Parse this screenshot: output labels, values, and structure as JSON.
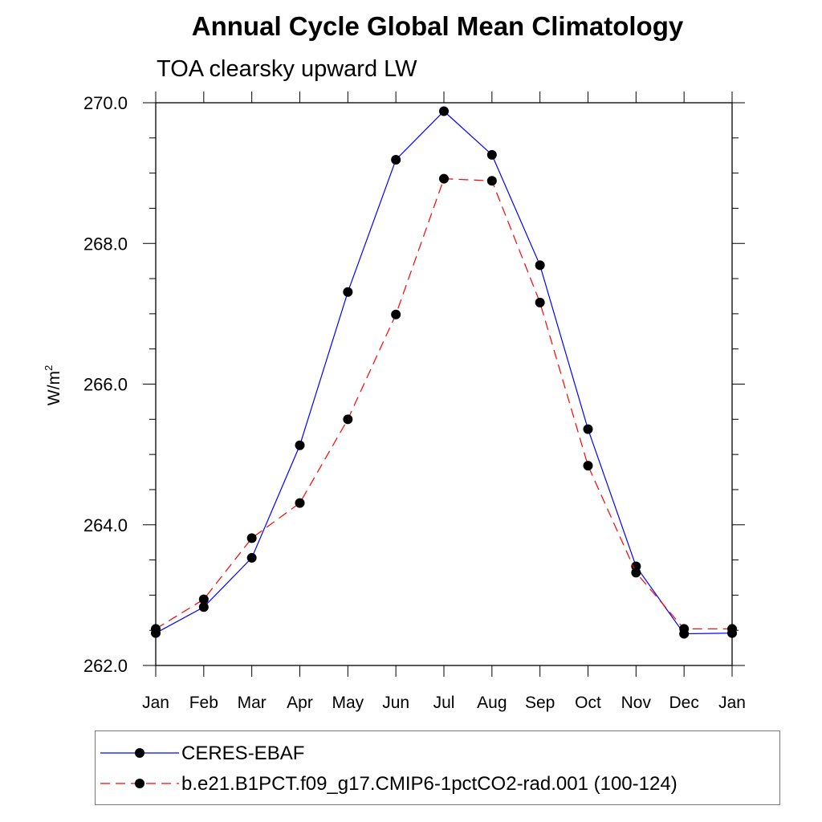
{
  "title": "Annual Cycle Global Mean Climatology",
  "subtitle": "TOA clearsky upward LW",
  "chart_data": {
    "type": "line",
    "title": "Annual Cycle Global Mean Climatology",
    "subtitle": "TOA clearsky upward LW",
    "xlabel": "",
    "ylabel": "W/m",
    "ylabel_superscript": "2",
    "categories": [
      "Jan",
      "Feb",
      "Mar",
      "Apr",
      "May",
      "Jun",
      "Jul",
      "Aug",
      "Sep",
      "Oct",
      "Nov",
      "Dec",
      "Jan"
    ],
    "ylim": [
      262.0,
      270.0
    ],
    "yticks": [
      "262.0",
      "264.0",
      "266.0",
      "268.0",
      "270.0"
    ],
    "grid": false,
    "legend_position": "bottom",
    "series": [
      {
        "name": "CERES-EBAF",
        "color": "#0000ff",
        "dash": "solid",
        "values": [
          262.46,
          262.83,
          263.53,
          265.13,
          267.31,
          269.19,
          269.88,
          269.26,
          267.69,
          265.36,
          263.41,
          262.45,
          262.46
        ]
      },
      {
        "name": "b.e21.B1PCT.f09_g17.CMIP6-1pctCO2-rad.001 (100-124)",
        "color": "#ff0000",
        "dash": "dashed",
        "values": [
          262.52,
          262.94,
          263.81,
          264.31,
          265.5,
          266.99,
          268.92,
          268.89,
          267.16,
          264.84,
          263.32,
          262.52,
          262.52
        ]
      }
    ]
  }
}
